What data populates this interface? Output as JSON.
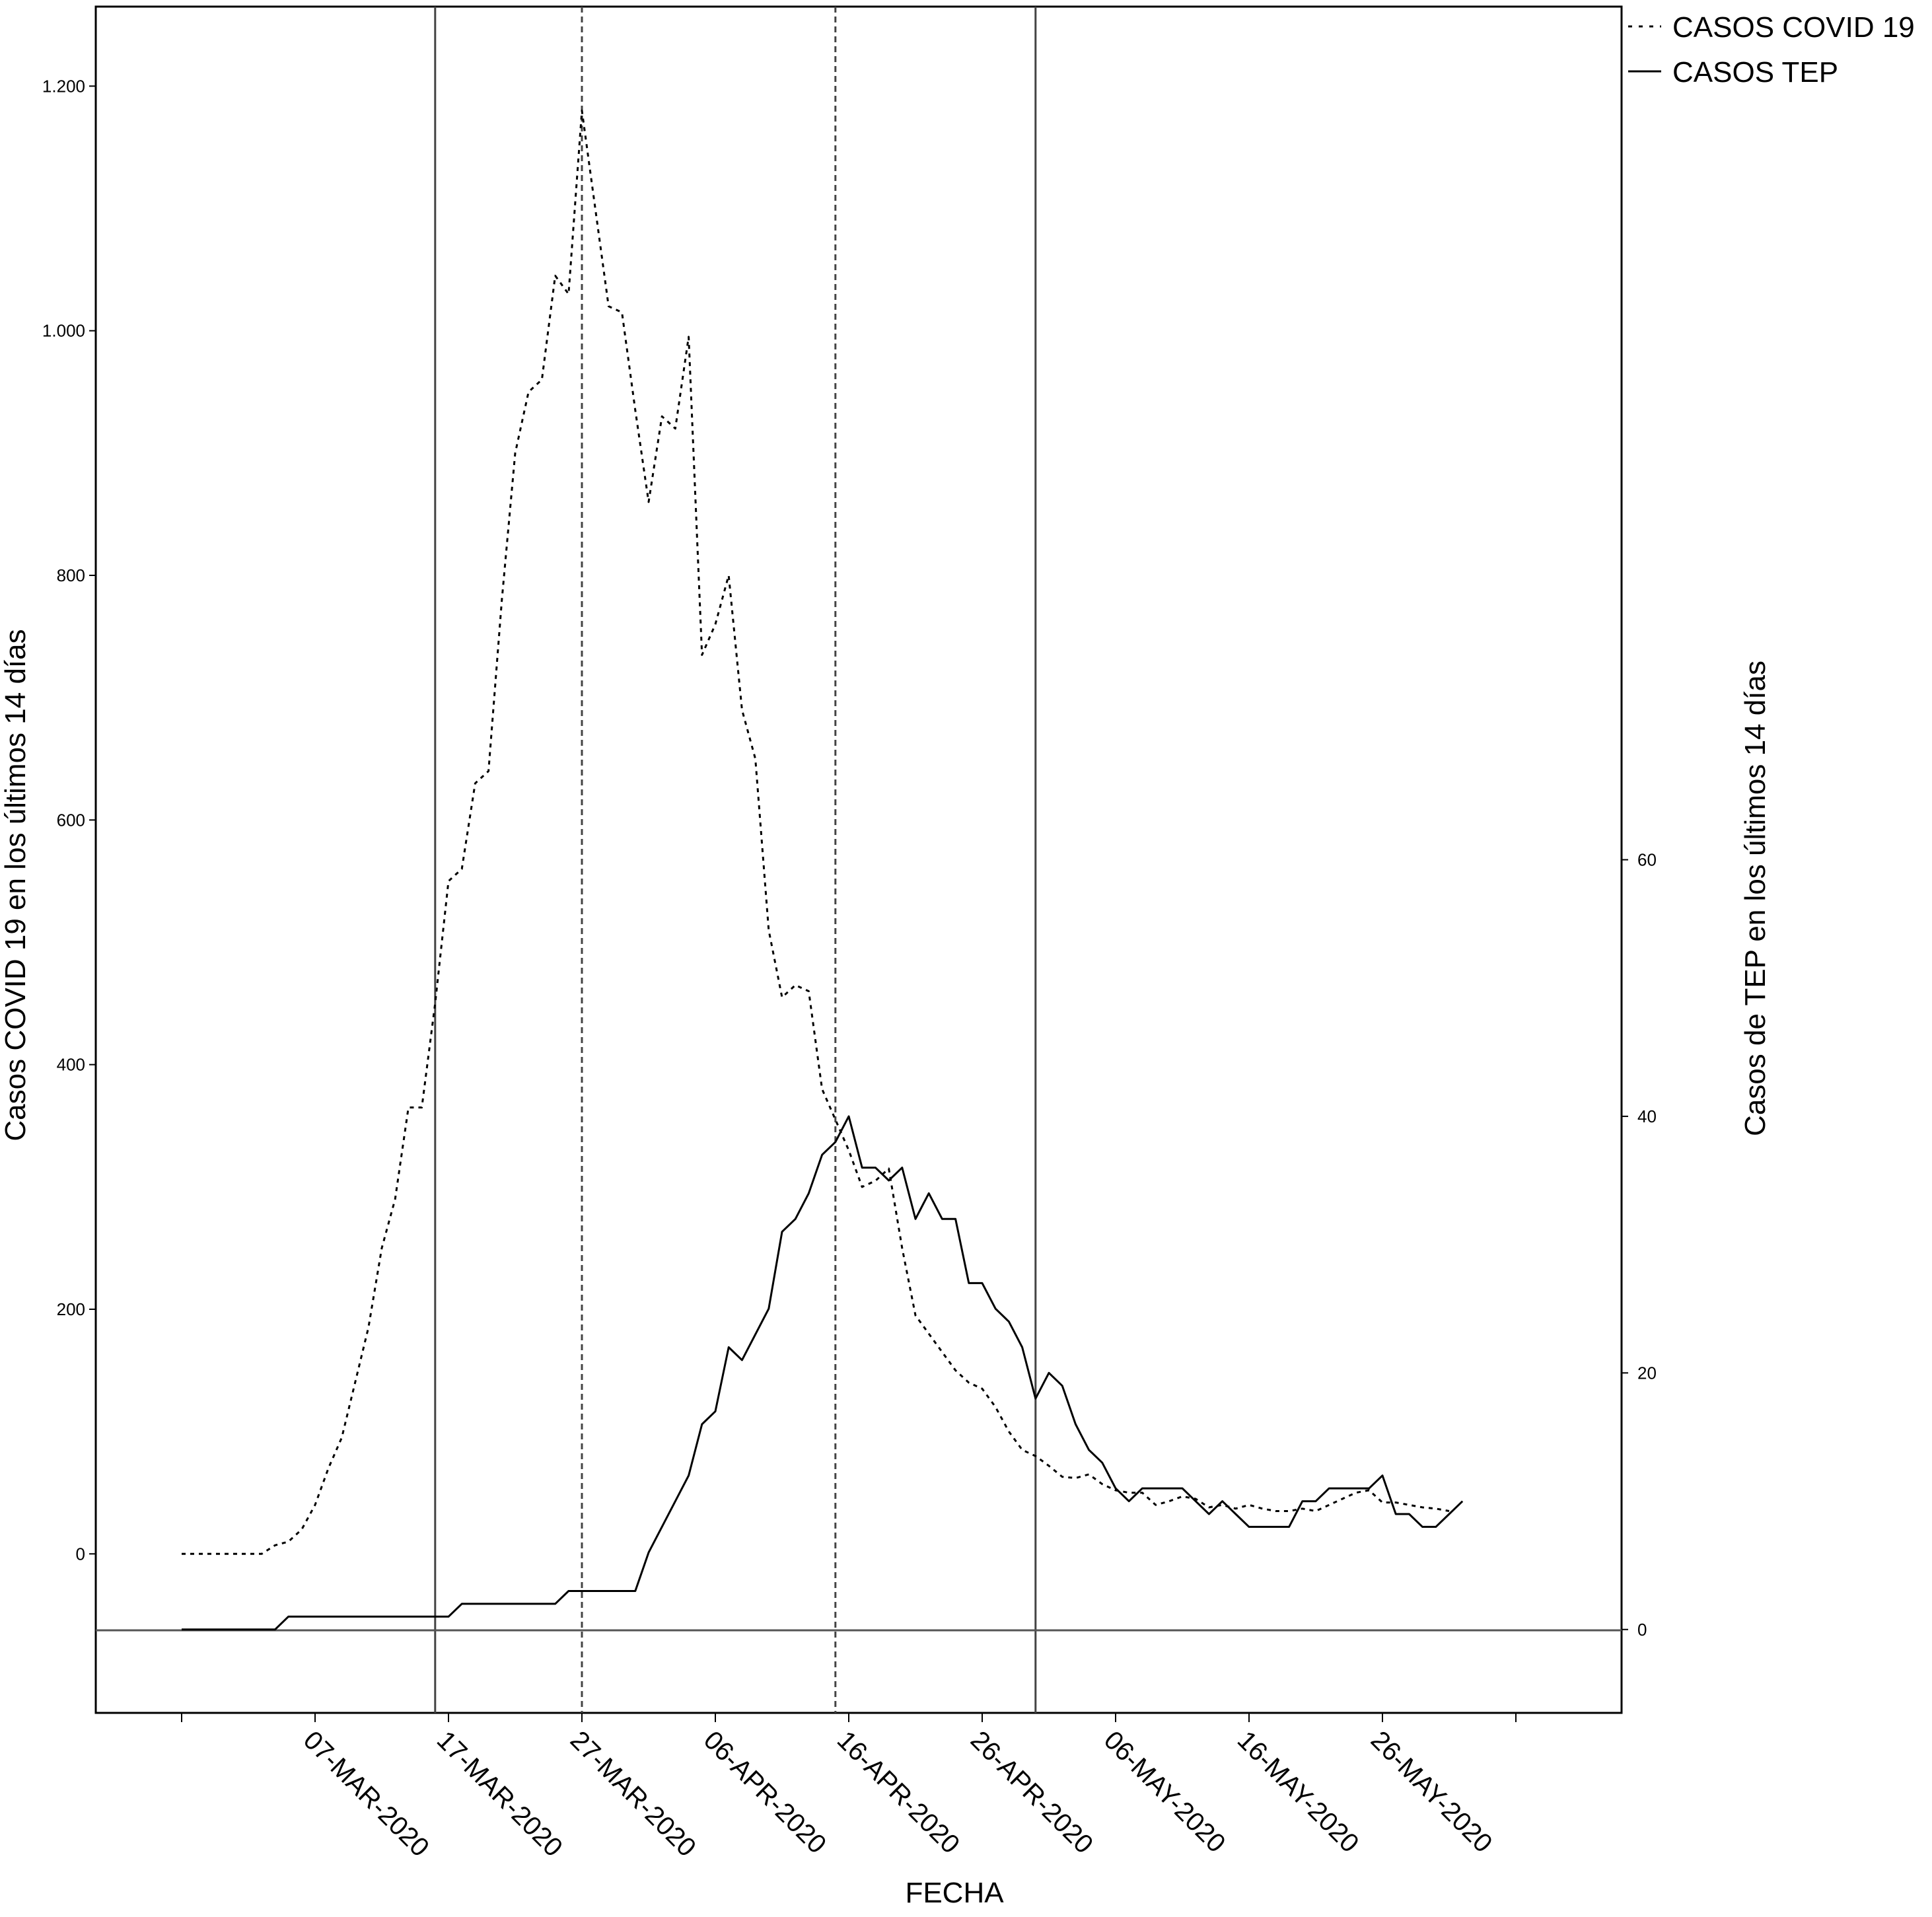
{
  "chart_data": {
    "type": "line",
    "xlabel": "FECHA",
    "ylabel_left": "Casos COVID 19 en los últimos 14 días",
    "ylabel_right": "Casos de TEP en los últimos 14 días",
    "x_range": [
      "2020-02-26",
      "2020-06-05"
    ],
    "x_ticks": [
      {
        "date": "2020-03-07",
        "label": "07-MAR-2020"
      },
      {
        "date": "2020-03-17",
        "label": "17-MAR-2020"
      },
      {
        "date": "2020-03-27",
        "label": "27-MAR-2020"
      },
      {
        "date": "2020-04-06",
        "label": "06-APR-2020"
      },
      {
        "date": "2020-04-16",
        "label": "16-APR-2020"
      },
      {
        "date": "2020-04-26",
        "label": "26-APR-2020"
      },
      {
        "date": "2020-05-06",
        "label": "06-MAY-2020"
      },
      {
        "date": "2020-05-16",
        "label": "16-MAY-2020"
      },
      {
        "date": "2020-05-26",
        "label": "26-MAY-2020"
      }
    ],
    "y_left": {
      "ylim": [
        -130,
        1265
      ],
      "ticks": [
        {
          "v": 0,
          "label": "0"
        },
        {
          "v": 200,
          "label": "200"
        },
        {
          "v": 400,
          "label": "400"
        },
        {
          "v": 600,
          "label": "600"
        },
        {
          "v": 800,
          "label": "800"
        },
        {
          "v": 1000,
          "label": "1.000"
        },
        {
          "v": 1200,
          "label": "1.200"
        }
      ]
    },
    "y_right": {
      "ylim": [
        -6.5,
        126.5
      ],
      "ticks": [
        {
          "v": 0,
          "label": "0"
        },
        {
          "v": 20,
          "label": "20"
        },
        {
          "v": 40,
          "label": "40"
        },
        {
          "v": 60,
          "label": "60"
        }
      ]
    },
    "vertical_lines": [
      {
        "date": "2020-03-16",
        "style": "solid"
      },
      {
        "date": "2020-03-27",
        "style": "dashed"
      },
      {
        "date": "2020-04-15",
        "style": "dashed"
      },
      {
        "date": "2020-04-30",
        "style": "solid"
      }
    ],
    "legend_position": "top-right",
    "legend": [
      {
        "label": "CASOS COVID 19",
        "style": "dotted"
      },
      {
        "label": "CASOS TEP",
        "style": "solid"
      }
    ],
    "series": [
      {
        "name": "CASOS COVID 19",
        "axis": "left",
        "style": "dotted",
        "points": [
          [
            "2020-02-26",
            0
          ],
          [
            "2020-02-28",
            0
          ],
          [
            "2020-03-01",
            0
          ],
          [
            "2020-03-03",
            0
          ],
          [
            "2020-03-04",
            7
          ],
          [
            "2020-03-05",
            10
          ],
          [
            "2020-03-06",
            20
          ],
          [
            "2020-03-07",
            40
          ],
          [
            "2020-03-08",
            70
          ],
          [
            "2020-03-09",
            95
          ],
          [
            "2020-03-10",
            140
          ],
          [
            "2020-03-11",
            185
          ],
          [
            "2020-03-12",
            250
          ],
          [
            "2020-03-13",
            290
          ],
          [
            "2020-03-14",
            365
          ],
          [
            "2020-03-15",
            365
          ],
          [
            "2020-03-16",
            450
          ],
          [
            "2020-03-17",
            550
          ],
          [
            "2020-03-18",
            560
          ],
          [
            "2020-03-19",
            630
          ],
          [
            "2020-03-20",
            640
          ],
          [
            "2020-03-21",
            780
          ],
          [
            "2020-03-22",
            900
          ],
          [
            "2020-03-23",
            950
          ],
          [
            "2020-03-24",
            960
          ],
          [
            "2020-03-25",
            1045
          ],
          [
            "2020-03-26",
            1030
          ],
          [
            "2020-03-27",
            1180
          ],
          [
            "2020-03-28",
            1100
          ],
          [
            "2020-03-29",
            1020
          ],
          [
            "2020-03-30",
            1015
          ],
          [
            "2020-03-31",
            935
          ],
          [
            "2020-04-01",
            860
          ],
          [
            "2020-04-02",
            930
          ],
          [
            "2020-04-03",
            920
          ],
          [
            "2020-04-04",
            995
          ],
          [
            "2020-04-05",
            735
          ],
          [
            "2020-04-06",
            760
          ],
          [
            "2020-04-07",
            800
          ],
          [
            "2020-04-08",
            690
          ],
          [
            "2020-04-09",
            650
          ],
          [
            "2020-04-10",
            510
          ],
          [
            "2020-04-11",
            455
          ],
          [
            "2020-04-12",
            465
          ],
          [
            "2020-04-13",
            460
          ],
          [
            "2020-04-14",
            380
          ],
          [
            "2020-04-15",
            355
          ],
          [
            "2020-04-16",
            330
          ],
          [
            "2020-04-17",
            300
          ],
          [
            "2020-04-18",
            305
          ],
          [
            "2020-04-19",
            315
          ],
          [
            "2020-04-20",
            250
          ],
          [
            "2020-04-21",
            195
          ],
          [
            "2020-04-22",
            180
          ],
          [
            "2020-04-23",
            165
          ],
          [
            "2020-04-24",
            150
          ],
          [
            "2020-04-25",
            140
          ],
          [
            "2020-04-26",
            135
          ],
          [
            "2020-04-27",
            120
          ],
          [
            "2020-04-28",
            100
          ],
          [
            "2020-04-29",
            85
          ],
          [
            "2020-04-30",
            80
          ],
          [
            "2020-05-01",
            72
          ],
          [
            "2020-05-02",
            63
          ],
          [
            "2020-05-03",
            62
          ],
          [
            "2020-05-04",
            65
          ],
          [
            "2020-05-05",
            57
          ],
          [
            "2020-05-06",
            52
          ],
          [
            "2020-05-07",
            50
          ],
          [
            "2020-05-08",
            50
          ],
          [
            "2020-05-09",
            40
          ],
          [
            "2020-05-10",
            43
          ],
          [
            "2020-05-11",
            47
          ],
          [
            "2020-05-12",
            45
          ],
          [
            "2020-05-13",
            38
          ],
          [
            "2020-05-14",
            40
          ],
          [
            "2020-05-15",
            37
          ],
          [
            "2020-05-16",
            40
          ],
          [
            "2020-05-17",
            37
          ],
          [
            "2020-05-18",
            35
          ],
          [
            "2020-05-19",
            35
          ],
          [
            "2020-05-20",
            37
          ],
          [
            "2020-05-21",
            35
          ],
          [
            "2020-05-22",
            40
          ],
          [
            "2020-05-23",
            45
          ],
          [
            "2020-05-24",
            50
          ],
          [
            "2020-05-25",
            52
          ],
          [
            "2020-05-26",
            42
          ],
          [
            "2020-05-27",
            42
          ],
          [
            "2020-05-28",
            40
          ],
          [
            "2020-05-29",
            38
          ],
          [
            "2020-05-30",
            37
          ],
          [
            "2020-05-31",
            35
          ]
        ]
      },
      {
        "name": "CASOS TEP",
        "axis": "right",
        "style": "solid",
        "points": [
          [
            "2020-02-26",
            0
          ],
          [
            "2020-02-28",
            0
          ],
          [
            "2020-03-01",
            0
          ],
          [
            "2020-03-04",
            0
          ],
          [
            "2020-03-05",
            1
          ],
          [
            "2020-03-16",
            1
          ],
          [
            "2020-03-17",
            1
          ],
          [
            "2020-03-18",
            2
          ],
          [
            "2020-03-25",
            2
          ],
          [
            "2020-03-26",
            3
          ],
          [
            "2020-03-31",
            3
          ],
          [
            "2020-04-01",
            6
          ],
          [
            "2020-04-04",
            12
          ],
          [
            "2020-04-05",
            16
          ],
          [
            "2020-04-06",
            17
          ],
          [
            "2020-04-07",
            22
          ],
          [
            "2020-04-08",
            21
          ],
          [
            "2020-04-09",
            23
          ],
          [
            "2020-04-10",
            25
          ],
          [
            "2020-04-11",
            31
          ],
          [
            "2020-04-12",
            32
          ],
          [
            "2020-04-13",
            34
          ],
          [
            "2020-04-14",
            37
          ],
          [
            "2020-04-15",
            38
          ],
          [
            "2020-04-16",
            40
          ],
          [
            "2020-04-17",
            36
          ],
          [
            "2020-04-18",
            36
          ],
          [
            "2020-04-19",
            35
          ],
          [
            "2020-04-20",
            36
          ],
          [
            "2020-04-21",
            32
          ],
          [
            "2020-04-22",
            34
          ],
          [
            "2020-04-23",
            32
          ],
          [
            "2020-04-24",
            32
          ],
          [
            "2020-04-25",
            27
          ],
          [
            "2020-04-26",
            27
          ],
          [
            "2020-04-27",
            25
          ],
          [
            "2020-04-28",
            24
          ],
          [
            "2020-04-29",
            22
          ],
          [
            "2020-04-30",
            18
          ],
          [
            "2020-05-01",
            20
          ],
          [
            "2020-05-02",
            19
          ],
          [
            "2020-05-03",
            16
          ],
          [
            "2020-05-04",
            14
          ],
          [
            "2020-05-05",
            13
          ],
          [
            "2020-05-06",
            11
          ],
          [
            "2020-05-07",
            10
          ],
          [
            "2020-05-08",
            11
          ],
          [
            "2020-05-11",
            11
          ],
          [
            "2020-05-12",
            10
          ],
          [
            "2020-05-13",
            9
          ],
          [
            "2020-05-14",
            10
          ],
          [
            "2020-05-15",
            9
          ],
          [
            "2020-05-16",
            8
          ],
          [
            "2020-05-18",
            8
          ],
          [
            "2020-05-19",
            8
          ],
          [
            "2020-05-20",
            10
          ],
          [
            "2020-05-21",
            10
          ],
          [
            "2020-05-22",
            11
          ],
          [
            "2020-05-25",
            11
          ],
          [
            "2020-05-26",
            12
          ],
          [
            "2020-05-27",
            9
          ],
          [
            "2020-05-28",
            9
          ],
          [
            "2020-05-29",
            8
          ],
          [
            "2020-05-30",
            8
          ],
          [
            "2020-05-31",
            9
          ],
          [
            "2020-06-01",
            10
          ]
        ]
      }
    ]
  }
}
